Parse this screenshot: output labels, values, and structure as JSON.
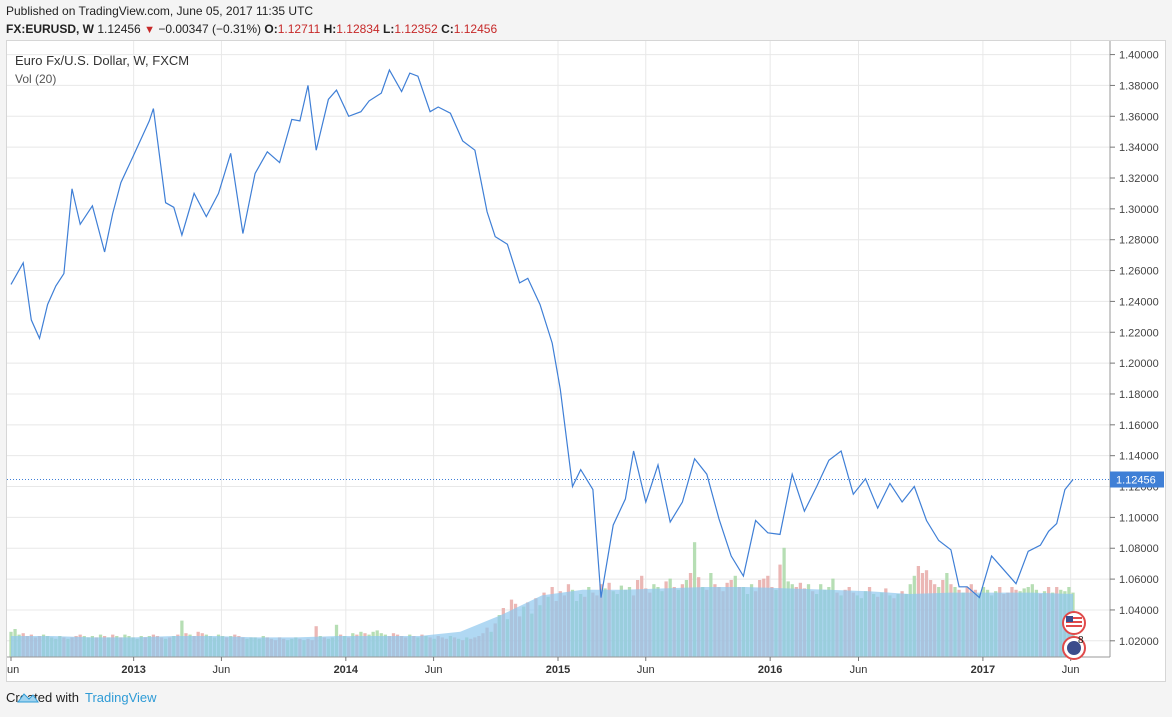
{
  "header": {
    "published": "Published on TradingView.com, June 05, 2017 11:35 UTC",
    "symbol": "FX:EURUSD, W",
    "last": "1.12456",
    "change": "−0.00347 (−0.31%)",
    "o_label": "O:",
    "o_value": "1.12711",
    "h_label": "H:",
    "h_value": "1.12834",
    "l_label": "L:",
    "l_value": "1.12352",
    "c_label": "C:",
    "c_value": "1.12456"
  },
  "legend": {
    "series_title": "Euro Fx/U.S. Dollar, W, FXCM",
    "volume_title": "Vol (20)"
  },
  "footer": {
    "created_with": "Created with",
    "brand": "TradingView"
  },
  "colors": {
    "line": "#3f7fd6",
    "last_price_bg": "#3f7fd6",
    "vol_up": "#a9d8a7",
    "vol_down": "#e8aaa8",
    "vol_ma": "#8ec8ee",
    "grid": "#e8e8e8"
  },
  "icons": [
    "us-flag-event-icon",
    "us-flag-event-badge-icon"
  ],
  "event_badge": "8",
  "chart_data": {
    "type": "line",
    "title": "Euro Fx/U.S. Dollar, W, FXCM",
    "xlabel": "",
    "ylabel": "",
    "ylim": [
      1.0095,
      1.4088
    ],
    "grid": true,
    "y_ticks": [
      "1.02000",
      "1.04000",
      "1.06000",
      "1.08000",
      "1.10000",
      "1.12000",
      "1.14000",
      "1.16000",
      "1.18000",
      "1.20000",
      "1.22000",
      "1.24000",
      "1.26000",
      "1.28000",
      "1.30000",
      "1.32000",
      "1.34000",
      "1.36000",
      "1.38000",
      "1.40000"
    ],
    "x_ticks": [
      "Jun",
      "2013",
      "Jun",
      "2014",
      "Jun",
      "2015",
      "Jun",
      "2016",
      "Jun",
      "2017",
      "Jun"
    ],
    "x_tick_dates": [
      "2012-06-04",
      "2013-01-01",
      "2013-06-01",
      "2014-01-01",
      "2014-06-01",
      "2015-01-01",
      "2015-06-01",
      "2016-01-01",
      "2016-06-01",
      "2017-01-01",
      "2017-06-01"
    ],
    "last_value": 1.12456,
    "last_value_label": "1.12456",
    "series": [
      {
        "values": [
          [
            "2012-06-04",
            1.251
          ],
          [
            "2012-06-25",
            1.265
          ],
          [
            "2012-07-09",
            1.228
          ],
          [
            "2012-07-23",
            1.216
          ],
          [
            "2012-08-06",
            1.238
          ],
          [
            "2012-08-20",
            1.25
          ],
          [
            "2012-09-03",
            1.258
          ],
          [
            "2012-09-17",
            1.313
          ],
          [
            "2012-10-01",
            1.29
          ],
          [
            "2012-10-22",
            1.302
          ],
          [
            "2012-11-12",
            1.272
          ],
          [
            "2012-11-26",
            1.297
          ],
          [
            "2012-12-10",
            1.317
          ],
          [
            "2012-12-31",
            1.334
          ],
          [
            "2013-01-28",
            1.357
          ],
          [
            "2013-02-04",
            1.365
          ],
          [
            "2013-02-25",
            1.304
          ],
          [
            "2013-03-11",
            1.301
          ],
          [
            "2013-03-25",
            1.283
          ],
          [
            "2013-04-15",
            1.31
          ],
          [
            "2013-05-06",
            1.295
          ],
          [
            "2013-05-27",
            1.31
          ],
          [
            "2013-06-17",
            1.336
          ],
          [
            "2013-07-08",
            1.284
          ],
          [
            "2013-07-29",
            1.323
          ],
          [
            "2013-08-19",
            1.337
          ],
          [
            "2013-09-09",
            1.33
          ],
          [
            "2013-09-30",
            1.358
          ],
          [
            "2013-10-14",
            1.357
          ],
          [
            "2013-10-28",
            1.38
          ],
          [
            "2013-11-11",
            1.338
          ],
          [
            "2013-12-02",
            1.371
          ],
          [
            "2013-12-16",
            1.377
          ],
          [
            "2014-01-06",
            1.36
          ],
          [
            "2014-01-27",
            1.363
          ],
          [
            "2014-02-10",
            1.37
          ],
          [
            "2014-03-03",
            1.375
          ],
          [
            "2014-03-17",
            1.39
          ],
          [
            "2014-04-07",
            1.376
          ],
          [
            "2014-04-21",
            1.388
          ],
          [
            "2014-05-05",
            1.386
          ],
          [
            "2014-05-26",
            1.363
          ],
          [
            "2014-06-09",
            1.366
          ],
          [
            "2014-06-30",
            1.362
          ],
          [
            "2014-07-21",
            1.344
          ],
          [
            "2014-08-11",
            1.338
          ],
          [
            "2014-09-01",
            1.298
          ],
          [
            "2014-09-15",
            1.282
          ],
          [
            "2014-10-06",
            1.277
          ],
          [
            "2014-10-27",
            1.252
          ],
          [
            "2014-11-10",
            1.255
          ],
          [
            "2014-12-01",
            1.238
          ],
          [
            "2014-12-22",
            1.213
          ],
          [
            "2015-01-05",
            1.183
          ],
          [
            "2015-01-26",
            1.12
          ],
          [
            "2015-02-09",
            1.131
          ],
          [
            "2015-03-02",
            1.118
          ],
          [
            "2015-03-16",
            1.048
          ],
          [
            "2015-04-06",
            1.095
          ],
          [
            "2015-04-27",
            1.112
          ],
          [
            "2015-05-11",
            1.143
          ],
          [
            "2015-06-01",
            1.11
          ],
          [
            "2015-06-22",
            1.134
          ],
          [
            "2015-07-13",
            1.097
          ],
          [
            "2015-08-03",
            1.11
          ],
          [
            "2015-08-24",
            1.138
          ],
          [
            "2015-09-14",
            1.128
          ],
          [
            "2015-10-05",
            1.099
          ],
          [
            "2015-10-26",
            1.075
          ],
          [
            "2015-11-16",
            1.062
          ],
          [
            "2015-12-07",
            1.098
          ],
          [
            "2015-12-28",
            1.09
          ],
          [
            "2016-01-18",
            1.089
          ],
          [
            "2016-02-08",
            1.128
          ],
          [
            "2016-02-29",
            1.104
          ],
          [
            "2016-03-21",
            1.12
          ],
          [
            "2016-04-11",
            1.137
          ],
          [
            "2016-05-02",
            1.143
          ],
          [
            "2016-05-23",
            1.115
          ],
          [
            "2016-06-13",
            1.125
          ],
          [
            "2016-07-04",
            1.106
          ],
          [
            "2016-07-25",
            1.122
          ],
          [
            "2016-08-15",
            1.11
          ],
          [
            "2016-09-05",
            1.12
          ],
          [
            "2016-09-26",
            1.098
          ],
          [
            "2016-10-17",
            1.085
          ],
          [
            "2016-11-07",
            1.079
          ],
          [
            "2016-11-21",
            1.055
          ],
          [
            "2016-12-05",
            1.055
          ],
          [
            "2016-12-26",
            1.048
          ],
          [
            "2017-01-16",
            1.075
          ],
          [
            "2017-02-06",
            1.066
          ],
          [
            "2017-02-27",
            1.057
          ],
          [
            "2017-03-20",
            1.078
          ],
          [
            "2017-04-10",
            1.082
          ],
          [
            "2017-04-24",
            1.091
          ],
          [
            "2017-05-08",
            1.096
          ],
          [
            "2017-05-22",
            1.118
          ],
          [
            "2017-06-05",
            1.12456
          ]
        ]
      }
    ],
    "volume": {
      "name": "Vol (20)",
      "weeks": 262,
      "start": "2012-06-04",
      "relative_levels": [
        0.18,
        0.2,
        0.16,
        0.17,
        0.15,
        0.16,
        0.14,
        0.15,
        0.16,
        0.15,
        0.14,
        0.13,
        0.15,
        0.14,
        0.13,
        0.14,
        0.15,
        0.16,
        0.15,
        0.14,
        0.15,
        0.14,
        0.16,
        0.15,
        0.14,
        0.16,
        0.15,
        0.14,
        0.16,
        0.15,
        0.14,
        0.13,
        0.15,
        0.14,
        0.15,
        0.16,
        0.15,
        0.14,
        0.13,
        0.14,
        0.15,
        0.16,
        0.26,
        0.17,
        0.16,
        0.15,
        0.18,
        0.17,
        0.16,
        0.15,
        0.14,
        0.16,
        0.15,
        0.14,
        0.15,
        0.16,
        0.15,
        0.14,
        0.13,
        0.14,
        0.14,
        0.13,
        0.15,
        0.14,
        0.13,
        0.12,
        0.14,
        0.13,
        0.12,
        0.13,
        0.14,
        0.13,
        0.12,
        0.13,
        0.12,
        0.22,
        0.15,
        0.14,
        0.13,
        0.14,
        0.23,
        0.16,
        0.15,
        0.14,
        0.17,
        0.16,
        0.18,
        0.17,
        0.16,
        0.18,
        0.19,
        0.17,
        0.16,
        0.15,
        0.17,
        0.16,
        0.15,
        0.14,
        0.16,
        0.15,
        0.14,
        0.16,
        0.15,
        0.14,
        0.13,
        0.15,
        0.14,
        0.13,
        0.15,
        0.14,
        0.13,
        0.12,
        0.14,
        0.13,
        0.14,
        0.15,
        0.17,
        0.21,
        0.18,
        0.24,
        0.3,
        0.35,
        0.27,
        0.41,
        0.38,
        0.29,
        0.36,
        0.39,
        0.31,
        0.42,
        0.37,
        0.46,
        0.43,
        0.5,
        0.4,
        0.47,
        0.44,
        0.52,
        0.48,
        0.4,
        0.45,
        0.43,
        0.5,
        0.46,
        0.44,
        0.52,
        0.49,
        0.53,
        0.47,
        0.45,
        0.51,
        0.48,
        0.5,
        0.44,
        0.55,
        0.58,
        0.49,
        0.46,
        0.52,
        0.5,
        0.47,
        0.54,
        0.56,
        0.5,
        0.48,
        0.52,
        0.55,
        0.6,
        0.82,
        0.57,
        0.5,
        0.48,
        0.6,
        0.52,
        0.5,
        0.47,
        0.53,
        0.55,
        0.58,
        0.5,
        0.5,
        0.45,
        0.52,
        0.47,
        0.55,
        0.56,
        0.58,
        0.5,
        0.48,
        0.66,
        0.78,
        0.54,
        0.52,
        0.5,
        0.53,
        0.49,
        0.52,
        0.47,
        0.45,
        0.52,
        0.48,
        0.5,
        0.56,
        0.46,
        0.44,
        0.48,
        0.5,
        0.46,
        0.44,
        0.42,
        0.47,
        0.5,
        0.45,
        0.43,
        0.46,
        0.49,
        0.44,
        0.42,
        0.45,
        0.47,
        0.45,
        0.52,
        0.58,
        0.65,
        0.6,
        0.62,
        0.55,
        0.52,
        0.5,
        0.55,
        0.6,
        0.52,
        0.5,
        0.48,
        0.46,
        0.5,
        0.52,
        0.48,
        0.45,
        0.5,
        0.48,
        0.44,
        0.47,
        0.5,
        0.45,
        0.46,
        0.5,
        0.48,
        0.47,
        0.49,
        0.5,
        0.52,
        0.48,
        0.45,
        0.47,
        0.5,
        0.46,
        0.5,
        0.48,
        0.47,
        0.5,
        0.46
      ],
      "ma_relative_levels": [
        0.15,
        0.15,
        0.14,
        0.14,
        0.15,
        0.15,
        0.14,
        0.14,
        0.15,
        0.15,
        0.15,
        0.18,
        0.3,
        0.44,
        0.48,
        0.48,
        0.49,
        0.5,
        0.5,
        0.49,
        0.48,
        0.47,
        0.45,
        0.46,
        0.46,
        0.46,
        0.45
      ]
    }
  }
}
